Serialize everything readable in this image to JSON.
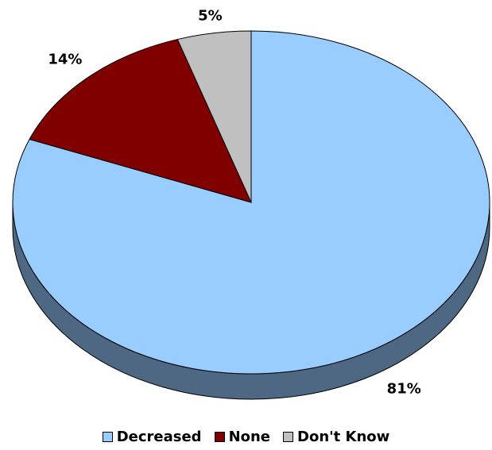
{
  "chart_data": {
    "type": "pie",
    "title": "",
    "labels": [
      "Decreased",
      "None",
      "Don't Know"
    ],
    "values": [
      81,
      14,
      5
    ],
    "value_labels": [
      "81%",
      "14%",
      "5%"
    ],
    "colors": [
      "#99ccff",
      "#800000",
      "#c0c0c0"
    ],
    "side_colors": [
      "#4e6782",
      "#4a0000",
      "#7a7a7a"
    ],
    "style": "3d-tilted",
    "legend_position": "bottom"
  }
}
